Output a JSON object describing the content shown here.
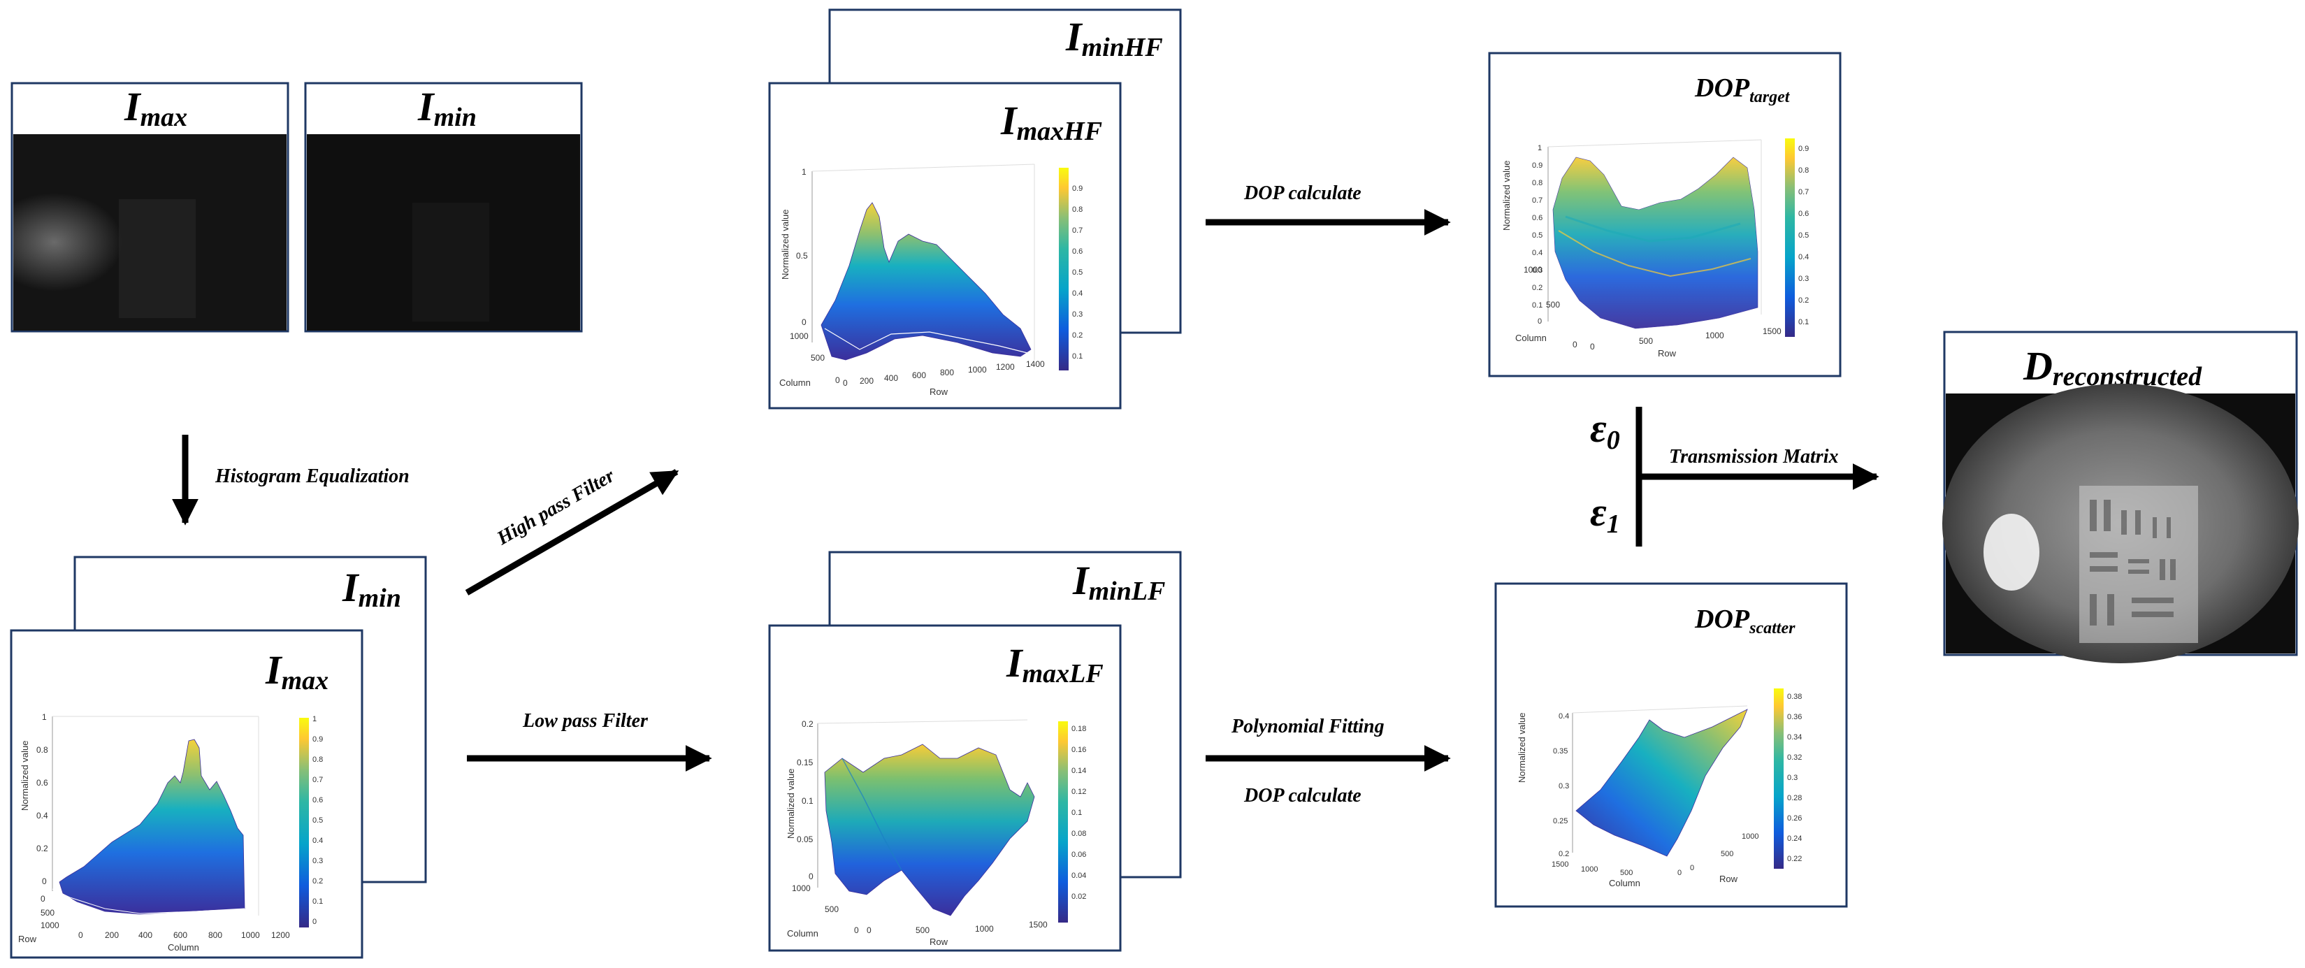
{
  "colors": {
    "frame": "#1f3864",
    "arrow": "#000000",
    "viridis": [
      "#440154",
      "#3b528b",
      "#21908d",
      "#5dc963",
      "#fde725"
    ],
    "parula": [
      "#352a87",
      "#0f5cdd",
      "#1481d6",
      "#06a4ca",
      "#2eb7a4",
      "#87bf77",
      "#d1bb59",
      "#fec832",
      "#f9fb0e"
    ]
  },
  "labels": {
    "imax": {
      "base": "I",
      "sub": "max"
    },
    "imin": {
      "base": "I",
      "sub": "min"
    },
    "imin_eq": {
      "base": "I",
      "sub": "min"
    },
    "imax_eq": {
      "base": "I",
      "sub": "max"
    },
    "imin_hf": {
      "base": "I",
      "sub": "minHF"
    },
    "imax_hf": {
      "base": "I",
      "sub": "maxHF"
    },
    "imin_lf": {
      "base": "I",
      "sub": "minLF"
    },
    "imax_lf": {
      "base": "I",
      "sub": "maxLF"
    },
    "dop_target": {
      "base": "DOP",
      "sub": "target"
    },
    "dop_scatter": {
      "base": "DOP",
      "sub": "scatter"
    },
    "eps0": {
      "base": "ε",
      "sub": "0"
    },
    "eps1": {
      "base": "ε",
      "sub": "1"
    },
    "d_recon": {
      "base": "D",
      "sub": "reconstructed"
    }
  },
  "arrows": {
    "hist_eq": "Histogram Equalization",
    "high_pass": "High pass Filter",
    "low_pass": "Low pass Filter",
    "dop_calc_top": "DOP calculate",
    "poly_fit": "Polynomial Fitting",
    "dop_calc_bottom": "DOP calculate",
    "transmission": "Transmission Matrix"
  },
  "plots": {
    "imax_eq": {
      "ylabel": "Normalized value",
      "zticks": [
        "1",
        "0.8",
        "0.6",
        "0.4",
        "0.2",
        "0"
      ],
      "xticks": [
        "0",
        "200",
        "400",
        "600",
        "800",
        "1000",
        "1200"
      ],
      "depth_ticks": [
        "0",
        "500",
        "1000"
      ],
      "xlabel": "Column",
      "dlabel": "Row",
      "cbar": [
        "1",
        "0.9",
        "0.8",
        "0.7",
        "0.6",
        "0.5",
        "0.4",
        "0.3",
        "0.2",
        "0.1",
        "0"
      ]
    },
    "imax_hf": {
      "ylabel": "Normalized value",
      "zticks": [
        "1",
        "0.5",
        "0"
      ],
      "xticks": [
        "0",
        "200",
        "400",
        "600",
        "800",
        "1000",
        "1200",
        "1400"
      ],
      "depth_ticks": [
        "0",
        "500",
        "1000"
      ],
      "xlabel": "Row",
      "dlabel": "Column",
      "cbar": [
        "0.9",
        "0.8",
        "0.7",
        "0.6",
        "0.5",
        "0.4",
        "0.3",
        "0.2",
        "0.1"
      ]
    },
    "imax_lf": {
      "ylabel": "Normalized value",
      "zticks": [
        "0.2",
        "0.15",
        "0.1",
        "0.05",
        "0"
      ],
      "xticks": [
        "0",
        "500",
        "1000",
        "1500"
      ],
      "depth_ticks": [
        "0",
        "500",
        "1000"
      ],
      "xlabel": "Row",
      "dlabel": "Column",
      "cbar": [
        "0.18",
        "0.16",
        "0.14",
        "0.12",
        "0.1",
        "0.08",
        "0.06",
        "0.04",
        "0.02"
      ]
    },
    "dop_target": {
      "ylabel": "Normalized value",
      "zticks": [
        "1",
        "0.9",
        "0.8",
        "0.7",
        "0.6",
        "0.5",
        "0.4",
        "0.3",
        "0.2",
        "0.1",
        "0"
      ],
      "xticks": [
        "0",
        "500",
        "1000",
        "1500"
      ],
      "depth_ticks": [
        "0",
        "500",
        "1000"
      ],
      "xlabel": "Row",
      "dlabel": "Column",
      "cbar": [
        "0.9",
        "0.8",
        "0.7",
        "0.6",
        "0.5",
        "0.4",
        "0.3",
        "0.2",
        "0.1"
      ]
    },
    "dop_scatter": {
      "ylabel": "Normalized value",
      "zticks": [
        "0.4",
        "0.35",
        "0.3",
        "0.25",
        "0.2"
      ],
      "xticks": [
        "0",
        "500",
        "1000"
      ],
      "depth_ticks": [
        "1500",
        "1000",
        "500",
        "0"
      ],
      "xlabel": "Row",
      "dlabel": "Column",
      "cbar": [
        "0.38",
        "0.36",
        "0.34",
        "0.32",
        "0.3",
        "0.28",
        "0.26",
        "0.24",
        "0.22"
      ]
    }
  }
}
